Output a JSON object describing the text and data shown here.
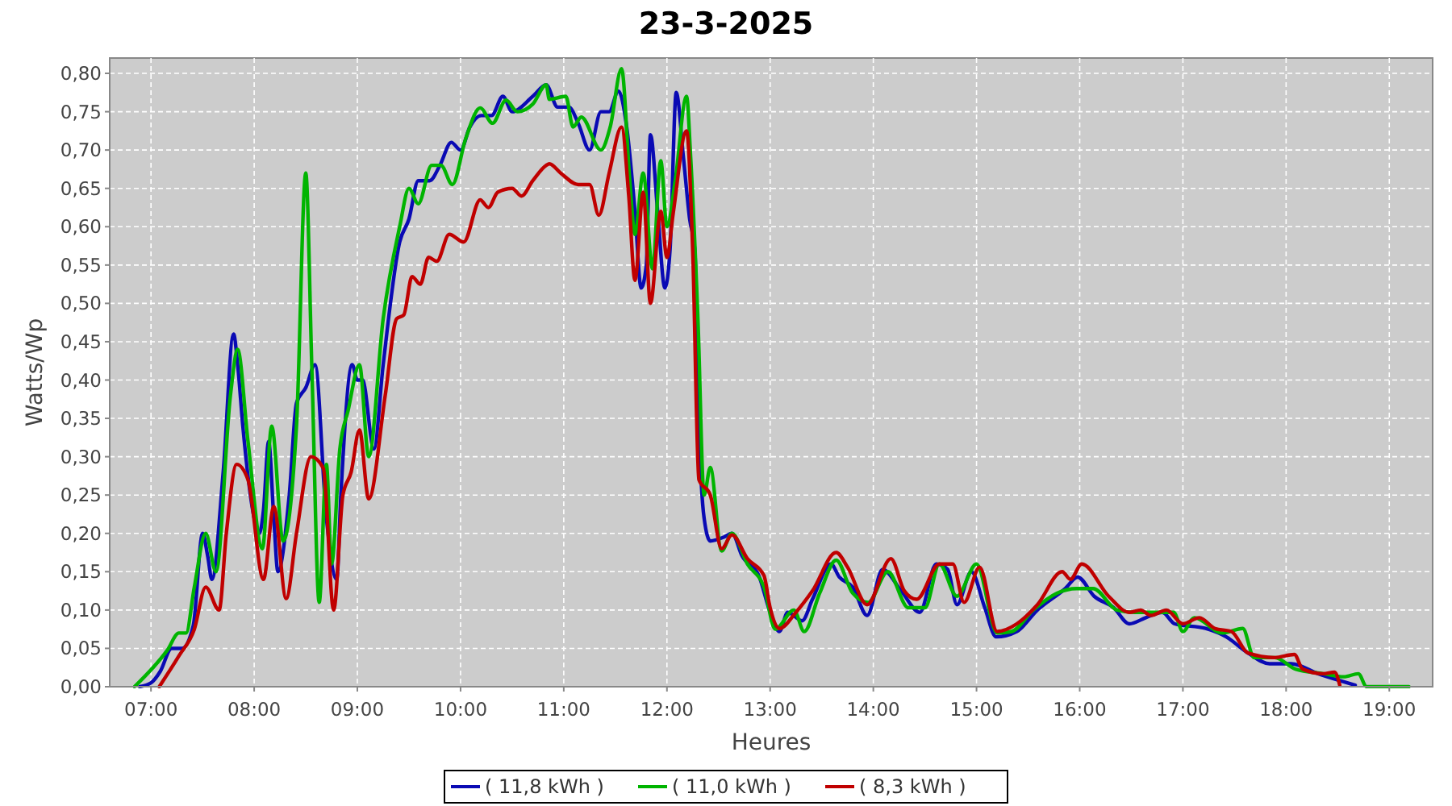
{
  "chart_data": {
    "type": "line",
    "title": "23-3-2025",
    "xlabel": "Heures",
    "ylabel": "Watts/Wp",
    "xlim": [
      6.6,
      19.42
    ],
    "ylim": [
      0,
      0.82
    ],
    "xticks": [
      {
        "value": 7,
        "label": "07:00"
      },
      {
        "value": 8,
        "label": "08:00"
      },
      {
        "value": 9,
        "label": "09:00"
      },
      {
        "value": 10,
        "label": "10:00"
      },
      {
        "value": 11,
        "label": "11:00"
      },
      {
        "value": 12,
        "label": "12:00"
      },
      {
        "value": 13,
        "label": "13:00"
      },
      {
        "value": 14,
        "label": "14:00"
      },
      {
        "value": 15,
        "label": "15:00"
      },
      {
        "value": 16,
        "label": "16:00"
      },
      {
        "value": 17,
        "label": "17:00"
      },
      {
        "value": 18,
        "label": "18:00"
      },
      {
        "value": 19,
        "label": "19:00"
      }
    ],
    "yticks": [
      {
        "value": 0,
        "label": "0,00"
      },
      {
        "value": 0.05,
        "label": "0,05"
      },
      {
        "value": 0.1,
        "label": "0,10"
      },
      {
        "value": 0.15,
        "label": "0,15"
      },
      {
        "value": 0.2,
        "label": "0,20"
      },
      {
        "value": 0.25,
        "label": "0,25"
      },
      {
        "value": 0.3,
        "label": "0,30"
      },
      {
        "value": 0.35,
        "label": "0,35"
      },
      {
        "value": 0.4,
        "label": "0,40"
      },
      {
        "value": 0.45,
        "label": "0,45"
      },
      {
        "value": 0.5,
        "label": "0,50"
      },
      {
        "value": 0.55,
        "label": "0,55"
      },
      {
        "value": 0.6,
        "label": "0,60"
      },
      {
        "value": 0.65,
        "label": "0,65"
      },
      {
        "value": 0.7,
        "label": "0,70"
      },
      {
        "value": 0.75,
        "label": "0,75"
      },
      {
        "value": 0.8,
        "label": "0,80"
      }
    ],
    "grid": true,
    "legend": "bottom",
    "marker": "none",
    "line_style": "solid",
    "series": [
      {
        "name": "( 11,8 kWh )",
        "color": "#0a0ab4",
        "x": [
          6.89,
          7.0,
          7.09,
          7.2,
          7.3,
          7.41,
          7.5,
          7.55,
          7.59,
          7.7,
          7.8,
          7.84,
          7.89,
          8.0,
          8.05,
          8.09,
          8.14,
          8.19,
          8.23,
          8.34,
          8.41,
          8.5,
          8.59,
          8.7,
          8.8,
          8.84,
          8.95,
          9.0,
          9.05,
          9.16,
          9.25,
          9.41,
          9.5,
          9.59,
          9.7,
          9.8,
          9.91,
          10.0,
          10.09,
          10.2,
          10.3,
          10.41,
          10.5,
          10.7,
          10.83,
          10.94,
          11.05,
          11.14,
          11.25,
          11.36,
          11.44,
          11.53,
          11.61,
          11.69,
          11.75,
          11.8,
          11.84,
          11.91,
          11.98,
          12.03,
          12.09,
          12.16,
          12.22,
          12.27,
          12.31,
          12.36,
          12.42,
          12.55,
          12.63,
          12.73,
          12.89,
          13.0,
          13.09,
          13.17,
          13.31,
          13.41,
          13.59,
          13.67,
          13.8,
          13.94,
          14.09,
          14.27,
          14.45,
          14.61,
          14.72,
          14.81,
          14.95,
          15.08,
          15.19,
          15.39,
          15.59,
          15.86,
          15.98,
          16.14,
          16.33,
          16.48,
          16.64,
          16.8,
          16.92,
          17.22,
          17.42,
          17.63,
          17.84,
          18.05,
          18.31,
          18.52,
          18.67
        ],
        "values": [
          0,
          0.005,
          0.02,
          0.05,
          0.05,
          0.08,
          0.2,
          0.17,
          0.14,
          0.28,
          0.46,
          0.42,
          0.34,
          0.22,
          0.2,
          0.23,
          0.32,
          0.22,
          0.15,
          0.25,
          0.37,
          0.39,
          0.42,
          0.22,
          0.14,
          0.25,
          0.42,
          0.4,
          0.4,
          0.31,
          0.42,
          0.58,
          0.61,
          0.66,
          0.66,
          0.68,
          0.71,
          0.7,
          0.73,
          0.745,
          0.745,
          0.77,
          0.75,
          0.77,
          0.785,
          0.756,
          0.756,
          0.735,
          0.7,
          0.75,
          0.75,
          0.777,
          0.73,
          0.62,
          0.52,
          0.55,
          0.72,
          0.62,
          0.52,
          0.57,
          0.775,
          0.69,
          0.61,
          0.57,
          0.34,
          0.22,
          0.19,
          0.195,
          0.2,
          0.17,
          0.145,
          0.097,
          0.072,
          0.097,
          0.086,
          0.114,
          0.16,
          0.143,
          0.13,
          0.093,
          0.153,
          0.125,
          0.097,
          0.16,
          0.153,
          0.107,
          0.15,
          0.103,
          0.065,
          0.072,
          0.1,
          0.128,
          0.143,
          0.118,
          0.103,
          0.082,
          0.09,
          0.097,
          0.082,
          0.076,
          0.065,
          0.044,
          0.03,
          0.03,
          0.017,
          0.008,
          0.002
        ]
      },
      {
        "name": "( 11,0 kWh )",
        "color": "#00b400",
        "x": [
          6.84,
          7.16,
          7.27,
          7.34,
          7.42,
          7.53,
          7.63,
          7.77,
          7.84,
          7.94,
          8.08,
          8.17,
          8.28,
          8.41,
          8.5,
          8.56,
          8.63,
          8.7,
          8.75,
          8.83,
          8.91,
          9.02,
          9.11,
          9.25,
          9.41,
          9.5,
          9.59,
          9.72,
          9.81,
          9.92,
          10.05,
          10.19,
          10.31,
          10.44,
          10.55,
          10.7,
          10.83,
          10.86,
          11.02,
          11.09,
          11.17,
          11.36,
          11.45,
          11.56,
          11.64,
          11.69,
          11.77,
          11.86,
          11.94,
          12.0,
          12.08,
          12.19,
          12.23,
          12.3,
          12.36,
          12.42,
          12.53,
          12.63,
          12.78,
          12.94,
          13.05,
          13.23,
          13.33,
          13.48,
          13.64,
          13.8,
          13.95,
          14.14,
          14.34,
          14.5,
          14.64,
          14.81,
          15.0,
          15.2,
          15.34,
          15.55,
          15.78,
          15.97,
          16.13,
          16.36,
          16.53,
          16.91,
          17.0,
          17.11,
          17.38,
          17.58,
          17.69,
          17.89,
          18.09,
          18.36,
          18.56,
          18.7,
          18.78,
          19.19
        ],
        "values": [
          0,
          0.048,
          0.07,
          0.07,
          0.13,
          0.2,
          0.15,
          0.38,
          0.44,
          0.32,
          0.18,
          0.34,
          0.19,
          0.34,
          0.67,
          0.41,
          0.11,
          0.29,
          0.16,
          0.31,
          0.36,
          0.42,
          0.3,
          0.48,
          0.6,
          0.65,
          0.63,
          0.68,
          0.68,
          0.655,
          0.715,
          0.755,
          0.735,
          0.765,
          0.75,
          0.76,
          0.785,
          0.766,
          0.77,
          0.73,
          0.743,
          0.7,
          0.73,
          0.806,
          0.66,
          0.59,
          0.67,
          0.545,
          0.686,
          0.6,
          0.66,
          0.77,
          0.69,
          0.48,
          0.25,
          0.286,
          0.177,
          0.2,
          0.16,
          0.13,
          0.075,
          0.1,
          0.072,
          0.122,
          0.165,
          0.122,
          0.11,
          0.15,
          0.103,
          0.103,
          0.16,
          0.118,
          0.16,
          0.07,
          0.072,
          0.1,
          0.122,
          0.128,
          0.128,
          0.1,
          0.097,
          0.097,
          0.072,
          0.09,
          0.07,
          0.076,
          0.038,
          0.038,
          0.023,
          0.017,
          0.013,
          0.017,
          0,
          0
        ]
      },
      {
        "name": "( 8,3 kWh )",
        "color": "#c00000",
        "x": [
          7.08,
          7.27,
          7.42,
          7.53,
          7.66,
          7.73,
          7.83,
          7.94,
          8.09,
          8.19,
          8.31,
          8.41,
          8.55,
          8.67,
          8.77,
          8.86,
          8.94,
          9.02,
          9.11,
          9.27,
          9.38,
          9.45,
          9.53,
          9.61,
          9.69,
          9.77,
          9.89,
          10.03,
          10.19,
          10.27,
          10.36,
          10.5,
          10.59,
          10.7,
          10.83,
          10.86,
          10.97,
          11.14,
          11.25,
          11.34,
          11.44,
          11.56,
          11.63,
          11.69,
          11.77,
          11.84,
          11.94,
          12.0,
          12.06,
          12.19,
          12.25,
          12.31,
          12.42,
          12.53,
          12.63,
          12.78,
          12.94,
          13.0,
          13.09,
          13.25,
          13.41,
          13.64,
          13.75,
          13.94,
          14.17,
          14.3,
          14.42,
          14.64,
          14.77,
          14.88,
          15.03,
          15.2,
          15.39,
          15.59,
          15.83,
          15.91,
          16.02,
          16.28,
          16.48,
          16.59,
          16.69,
          16.84,
          17.0,
          17.16,
          17.31,
          17.47,
          17.63,
          17.89,
          18.08,
          18.16,
          18.36,
          18.47,
          18.52
        ],
        "values": [
          0,
          0.04,
          0.075,
          0.13,
          0.1,
          0.2,
          0.29,
          0.27,
          0.14,
          0.235,
          0.115,
          0.2,
          0.3,
          0.285,
          0.1,
          0.25,
          0.28,
          0.335,
          0.245,
          0.38,
          0.48,
          0.485,
          0.535,
          0.525,
          0.56,
          0.555,
          0.59,
          0.58,
          0.635,
          0.625,
          0.645,
          0.65,
          0.64,
          0.66,
          0.68,
          0.682,
          0.67,
          0.655,
          0.655,
          0.615,
          0.67,
          0.73,
          0.64,
          0.53,
          0.645,
          0.5,
          0.62,
          0.56,
          0.617,
          0.725,
          0.567,
          0.27,
          0.25,
          0.18,
          0.198,
          0.167,
          0.145,
          0.103,
          0.076,
          0.097,
          0.125,
          0.175,
          0.156,
          0.107,
          0.167,
          0.125,
          0.114,
          0.16,
          0.16,
          0.11,
          0.156,
          0.072,
          0.082,
          0.107,
          0.15,
          0.14,
          0.16,
          0.118,
          0.097,
          0.1,
          0.093,
          0.1,
          0.082,
          0.09,
          0.076,
          0.072,
          0.044,
          0.038,
          0.042,
          0.023,
          0.017,
          0.019,
          0.002
        ]
      }
    ]
  }
}
